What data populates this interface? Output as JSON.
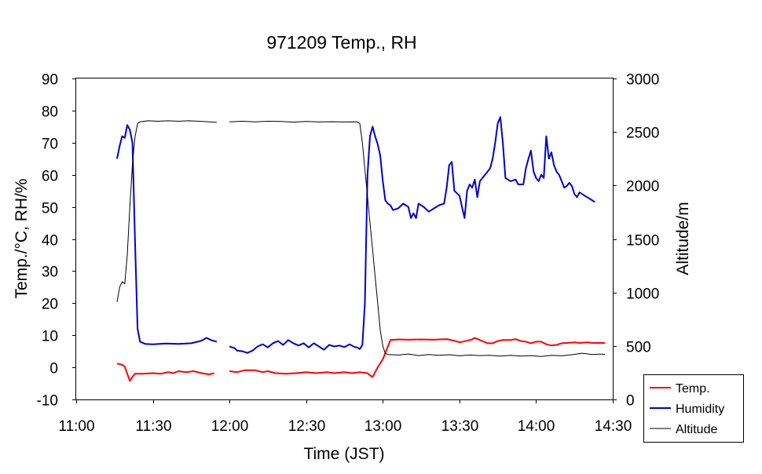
{
  "chart_data": {
    "type": "line",
    "title": "971209 Temp., RH",
    "xlabel": "Time (JST)",
    "ylabel": "Temp./°C, RH/%",
    "y2label": "Altitude/m",
    "x_ticks": [
      "11:00",
      "11:30",
      "12:00",
      "12:30",
      "13:00",
      "13:30",
      "14:00",
      "14:30"
    ],
    "xlim_minutes": [
      0,
      210
    ],
    "y_ticks": [
      "-10",
      "0",
      "10",
      "20",
      "30",
      "40",
      "50",
      "60",
      "70",
      "80",
      "90"
    ],
    "ylim": [
      -10,
      90
    ],
    "y2_ticks": [
      "0",
      "500",
      "1000",
      "1500",
      "2000",
      "2500",
      "3000"
    ],
    "y2lim": [
      0,
      3000
    ],
    "legend_position": "bottom-right",
    "series": [
      {
        "name": "Temp.",
        "axis": "left",
        "color": "#ff0000",
        "segments": [
          [
            [
              16,
              1.2
            ],
            [
              18,
              0.8
            ],
            [
              19,
              0.2
            ],
            [
              20,
              -2
            ],
            [
              21,
              -4.2
            ],
            [
              22,
              -3
            ],
            [
              23,
              -2
            ],
            [
              26,
              -2
            ],
            [
              30,
              -1.8
            ],
            [
              33,
              -2
            ],
            [
              36,
              -1.5
            ],
            [
              38,
              -1.8
            ],
            [
              40,
              -1.2
            ],
            [
              43,
              -1.5
            ],
            [
              46,
              -1.2
            ],
            [
              49,
              -1.8
            ],
            [
              52,
              -2.2
            ],
            [
              54,
              -1.8
            ]
          ],
          [
            [
              60,
              -1.2
            ],
            [
              63,
              -1.5
            ],
            [
              66,
              -0.9
            ],
            [
              70,
              -0.9
            ],
            [
              73,
              -1.5
            ],
            [
              75,
              -1.2
            ],
            [
              78,
              -1.8
            ],
            [
              82,
              -2
            ],
            [
              86,
              -1.8
            ],
            [
              90,
              -1.5
            ],
            [
              94,
              -1.8
            ],
            [
              98,
              -1.5
            ],
            [
              101,
              -1.8
            ],
            [
              105,
              -1.5
            ],
            [
              108,
              -1.8
            ],
            [
              111,
              -1.5
            ],
            [
              114,
              -1.8
            ],
            [
              115,
              -2.5
            ],
            [
              116,
              -3
            ],
            [
              117,
              -1.5
            ],
            [
              118,
              0
            ],
            [
              120,
              2.5
            ],
            [
              121,
              4.5
            ],
            [
              122,
              6.5
            ],
            [
              123,
              8.5
            ],
            [
              126,
              8.7
            ],
            [
              130,
              8.6
            ],
            [
              135,
              8.7
            ],
            [
              140,
              8.6
            ],
            [
              145,
              8.8
            ],
            [
              148,
              8.3
            ],
            [
              150,
              7.8
            ],
            [
              153,
              8.3
            ],
            [
              155,
              8.7
            ],
            [
              156,
              9.2
            ],
            [
              158,
              8.5
            ],
            [
              161,
              7.5
            ],
            [
              163,
              7.5
            ],
            [
              165,
              8.2
            ],
            [
              167,
              8.5
            ],
            [
              170,
              8.5
            ],
            [
              172,
              8.8
            ],
            [
              174,
              8.2
            ],
            [
              176,
              8
            ],
            [
              178,
              7.5
            ],
            [
              180,
              8
            ],
            [
              182,
              8
            ],
            [
              184,
              7.2
            ],
            [
              186,
              6.8
            ],
            [
              188,
              7
            ],
            [
              190,
              7.5
            ],
            [
              192,
              7.6
            ],
            [
              195,
              7.8
            ],
            [
              197,
              7.6
            ],
            [
              200,
              7.8
            ],
            [
              202,
              7.6
            ],
            [
              205,
              7.6
            ],
            [
              207,
              7.6
            ]
          ]
        ]
      },
      {
        "name": "Humidity",
        "axis": "left",
        "color": "#0000cc",
        "segments": [
          [
            [
              16,
              65
            ],
            [
              17,
              69
            ],
            [
              18,
              72
            ],
            [
              19,
              71.5
            ],
            [
              20,
              75.5
            ],
            [
              21,
              74
            ],
            [
              22,
              70
            ],
            [
              23,
              40
            ],
            [
              24,
              12
            ],
            [
              25,
              8
            ],
            [
              27,
              7.3
            ],
            [
              30,
              7.2
            ],
            [
              35,
              7.4
            ],
            [
              40,
              7.3
            ],
            [
              45,
              7.5
            ],
            [
              49,
              8.3
            ],
            [
              51,
              9.2
            ],
            [
              53,
              8.4
            ],
            [
              55,
              8
            ]
          ],
          [
            [
              60,
              6.5
            ],
            [
              62,
              6
            ],
            [
              63,
              5.2
            ],
            [
              65,
              5
            ],
            [
              67,
              4.5
            ],
            [
              69,
              5.2
            ],
            [
              71,
              6.5
            ],
            [
              73,
              7.2
            ],
            [
              75,
              6.2
            ],
            [
              77,
              7.5
            ],
            [
              79,
              8.2
            ],
            [
              81,
              7
            ],
            [
              83,
              8.5
            ],
            [
              85,
              7.5
            ],
            [
              87,
              6.8
            ],
            [
              89,
              7.5
            ],
            [
              91,
              6.2
            ],
            [
              93,
              7.5
            ],
            [
              95,
              6.5
            ],
            [
              97,
              5.5
            ],
            [
              99,
              7
            ],
            [
              101,
              6.5
            ],
            [
              103,
              6.8
            ],
            [
              105,
              6.3
            ],
            [
              107,
              7.2
            ],
            [
              109,
              6.3
            ],
            [
              110,
              6.2
            ],
            [
              111,
              5.7
            ],
            [
              112,
              7
            ],
            [
              113,
              20
            ],
            [
              114,
              60
            ],
            [
              115,
              72
            ],
            [
              116,
              75
            ],
            [
              117,
              72
            ],
            [
              118,
              69.5
            ],
            [
              119,
              66
            ],
            [
              120,
              58
            ],
            [
              121,
              52
            ],
            [
              122,
              51
            ],
            [
              123,
              50.5
            ],
            [
              124,
              49
            ],
            [
              126,
              49.5
            ],
            [
              128,
              51
            ],
            [
              130,
              50
            ],
            [
              131,
              46.5
            ],
            [
              132,
              48
            ],
            [
              133,
              46.5
            ],
            [
              134,
              51
            ],
            [
              136,
              50
            ],
            [
              138,
              48.5
            ],
            [
              140,
              49.5
            ],
            [
              142,
              50.5
            ],
            [
              144,
              51
            ],
            [
              145,
              56
            ],
            [
              146,
              63
            ],
            [
              147,
              64
            ],
            [
              148,
              55
            ],
            [
              150,
              53.5
            ],
            [
              151,
              50
            ],
            [
              152,
              46.5
            ],
            [
              153,
              55
            ],
            [
              154,
              57
            ],
            [
              155,
              56
            ],
            [
              156,
              58.5
            ],
            [
              157,
              53
            ],
            [
              158,
              58
            ],
            [
              160,
              60
            ],
            [
              162,
              62
            ],
            [
              163,
              65
            ],
            [
              164,
              70
            ],
            [
              165,
              76
            ],
            [
              166,
              78
            ],
            [
              167,
              70
            ],
            [
              168,
              59
            ],
            [
              170,
              58
            ],
            [
              172,
              58.5
            ],
            [
              173,
              57
            ],
            [
              175,
              57
            ],
            [
              176,
              62
            ],
            [
              177,
              65
            ],
            [
              178,
              67.5
            ],
            [
              179,
              61
            ],
            [
              180,
              59
            ],
            [
              181,
              58
            ],
            [
              182,
              60
            ],
            [
              183,
              59
            ],
            [
              184,
              72
            ],
            [
              185,
              65
            ],
            [
              186,
              67
            ],
            [
              187,
              63
            ],
            [
              188,
              61
            ],
            [
              189,
              60
            ],
            [
              190,
              58
            ],
            [
              191,
              56
            ],
            [
              192,
              56.5
            ],
            [
              193,
              57.5
            ],
            [
              194,
              56.5
            ],
            [
              195,
              54
            ],
            [
              196,
              53
            ],
            [
              197,
              54.5
            ],
            [
              198,
              54
            ],
            [
              199,
              53.5
            ],
            [
              200,
              53
            ],
            [
              202,
              52
            ],
            [
              203,
              51.5
            ]
          ]
        ]
      },
      {
        "name": "Altitude",
        "axis": "right",
        "color": "#000000",
        "segments": [
          [
            [
              16,
              910
            ],
            [
              17,
              1050
            ],
            [
              18,
              1100
            ],
            [
              19,
              1080
            ],
            [
              20,
              1350
            ],
            [
              21,
              1800
            ],
            [
              22,
              2200
            ],
            [
              23,
              2450
            ],
            [
              24,
              2580
            ],
            [
              25,
              2595
            ],
            [
              28,
              2605
            ],
            [
              32,
              2600
            ],
            [
              36,
              2605
            ],
            [
              40,
              2600
            ],
            [
              44,
              2605
            ],
            [
              48,
              2600
            ],
            [
              52,
              2595
            ],
            [
              55,
              2590
            ]
          ],
          [
            [
              60,
              2595
            ],
            [
              65,
              2600
            ],
            [
              70,
              2595
            ],
            [
              75,
              2600
            ],
            [
              80,
              2598
            ],
            [
              85,
              2592
            ],
            [
              90,
              2598
            ],
            [
              95,
              2594
            ],
            [
              100,
              2596
            ],
            [
              105,
              2594
            ],
            [
              109,
              2595
            ],
            [
              110,
              2594
            ],
            [
              111,
              2580
            ],
            [
              112,
              2400
            ],
            [
              113,
              2150
            ],
            [
              114,
              1900
            ],
            [
              115,
              1650
            ],
            [
              116,
              1400
            ],
            [
              117,
              1150
            ],
            [
              118,
              900
            ],
            [
              119,
              650
            ],
            [
              120,
              500
            ],
            [
              121,
              430
            ],
            [
              122,
              420
            ],
            [
              126,
              415
            ],
            [
              130,
              425
            ],
            [
              134,
              410
            ],
            [
              138,
              420
            ],
            [
              142,
              412
            ],
            [
              146,
              418
            ],
            [
              150,
              408
            ],
            [
              154,
              415
            ],
            [
              158,
              410
            ],
            [
              162,
              412
            ],
            [
              166,
              405
            ],
            [
              170,
              412
            ],
            [
              174,
              405
            ],
            [
              178,
              410
            ],
            [
              182,
              402
            ],
            [
              186,
              412
            ],
            [
              190,
              408
            ],
            [
              194,
              418
            ],
            [
              198,
              432
            ],
            [
              202,
              420
            ],
            [
              205,
              424
            ],
            [
              207,
              422
            ]
          ]
        ]
      }
    ]
  }
}
